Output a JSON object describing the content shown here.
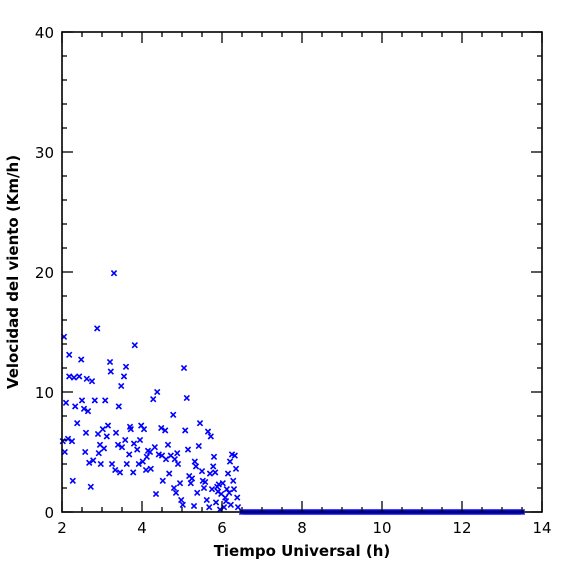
{
  "chart_data": {
    "type": "scatter",
    "title": "",
    "xlabel": "Tiempo Universal (h)",
    "ylabel": "Velocidad del viento (Km/h)",
    "xlim": [
      2,
      14
    ],
    "ylim": [
      0,
      40
    ],
    "x_ticks": [
      "2",
      "4",
      "6",
      "8",
      "10",
      "12",
      "14"
    ],
    "y_ticks": [
      "0",
      "10",
      "20",
      "30",
      "40"
    ],
    "marker": "x",
    "color": "#0000ff",
    "grid": false,
    "series": [
      {
        "points": [
          [
            2.02,
            5.9
          ],
          [
            2.05,
            14.6
          ],
          [
            2.07,
            5.0
          ],
          [
            2.1,
            9.1
          ],
          [
            2.15,
            6.1
          ],
          [
            2.18,
            11.3
          ],
          [
            2.18,
            13.1
          ],
          [
            2.25,
            5.9
          ],
          [
            2.27,
            2.6
          ],
          [
            2.3,
            11.2
          ],
          [
            2.33,
            8.8
          ],
          [
            2.38,
            7.4
          ],
          [
            2.43,
            11.3
          ],
          [
            2.48,
            12.7
          ],
          [
            2.5,
            9.3
          ],
          [
            2.55,
            8.6
          ],
          [
            2.58,
            5.0
          ],
          [
            2.6,
            6.6
          ],
          [
            2.62,
            11.1
          ],
          [
            2.65,
            8.4
          ],
          [
            2.68,
            4.1
          ],
          [
            2.72,
            2.1
          ],
          [
            2.75,
            10.9
          ],
          [
            2.78,
            4.3
          ],
          [
            2.82,
            9.3
          ],
          [
            2.88,
            15.3
          ],
          [
            2.9,
            6.5
          ],
          [
            2.92,
            4.9
          ],
          [
            2.95,
            5.6
          ],
          [
            2.97,
            4.0
          ],
          [
            3.02,
            6.9
          ],
          [
            3.05,
            5.3
          ],
          [
            3.08,
            9.3
          ],
          [
            3.12,
            6.3
          ],
          [
            3.15,
            7.2
          ],
          [
            3.2,
            12.5
          ],
          [
            3.22,
            11.7
          ],
          [
            3.25,
            4.0
          ],
          [
            3.3,
            19.9
          ],
          [
            3.33,
            3.5
          ],
          [
            3.35,
            6.6
          ],
          [
            3.4,
            5.6
          ],
          [
            3.42,
            8.8
          ],
          [
            3.45,
            3.3
          ],
          [
            3.48,
            10.5
          ],
          [
            3.5,
            5.4
          ],
          [
            3.55,
            11.3
          ],
          [
            3.58,
            6.0
          ],
          [
            3.6,
            12.1
          ],
          [
            3.62,
            4.0
          ],
          [
            3.68,
            4.8
          ],
          [
            3.7,
            7.1
          ],
          [
            3.72,
            6.9
          ],
          [
            3.78,
            3.3
          ],
          [
            3.8,
            5.7
          ],
          [
            3.82,
            13.9
          ],
          [
            3.88,
            5.2
          ],
          [
            3.92,
            4.0
          ],
          [
            3.95,
            6.0
          ],
          [
            3.98,
            7.2
          ],
          [
            4.02,
            4.2
          ],
          [
            4.05,
            6.9
          ],
          [
            4.1,
            3.5
          ],
          [
            4.12,
            4.6
          ],
          [
            4.15,
            5.1
          ],
          [
            4.2,
            5.0
          ],
          [
            4.22,
            3.6
          ],
          [
            4.28,
            9.4
          ],
          [
            4.32,
            5.4
          ],
          [
            4.35,
            1.5
          ],
          [
            4.38,
            10.0
          ],
          [
            4.42,
            4.8
          ],
          [
            4.48,
            7.0
          ],
          [
            4.5,
            4.7
          ],
          [
            4.52,
            2.6
          ],
          [
            4.58,
            6.8
          ],
          [
            4.6,
            4.4
          ],
          [
            4.65,
            5.6
          ],
          [
            4.68,
            3.2
          ],
          [
            4.72,
            4.7
          ],
          [
            4.78,
            8.1
          ],
          [
            4.8,
            2.0
          ],
          [
            4.82,
            4.4
          ],
          [
            4.85,
            1.6
          ],
          [
            4.88,
            4.9
          ],
          [
            4.9,
            4.0
          ],
          [
            4.95,
            2.4
          ],
          [
            4.98,
            1.0
          ],
          [
            5.02,
            0.6
          ],
          [
            5.05,
            12.0
          ],
          [
            5.08,
            6.8
          ],
          [
            5.12,
            9.5
          ],
          [
            5.15,
            5.2
          ],
          [
            5.18,
            3.0
          ],
          [
            5.22,
            2.4
          ],
          [
            5.25,
            2.8
          ],
          [
            5.3,
            0.5
          ],
          [
            5.32,
            4.2
          ],
          [
            5.35,
            3.8
          ],
          [
            5.38,
            1.6
          ],
          [
            5.42,
            5.5
          ],
          [
            5.45,
            7.4
          ],
          [
            5.5,
            3.4
          ],
          [
            5.52,
            2.6
          ],
          [
            5.55,
            2.0
          ],
          [
            5.58,
            2.5
          ],
          [
            5.62,
            1.0
          ],
          [
            5.65,
            6.7
          ],
          [
            5.68,
            0.4
          ],
          [
            5.7,
            3.2
          ],
          [
            5.72,
            6.3
          ],
          [
            5.75,
            1.9
          ],
          [
            5.78,
            3.8
          ],
          [
            5.8,
            4.6
          ],
          [
            5.83,
            3.3
          ],
          [
            5.85,
            0.8
          ],
          [
            5.88,
            2.1
          ],
          [
            5.9,
            1.7
          ],
          [
            5.92,
            2.3
          ],
          [
            5.95,
            0.2
          ],
          [
            5.98,
            1.5
          ],
          [
            6.02,
            2.4
          ],
          [
            6.05,
            0.4
          ],
          [
            6.08,
            1.2
          ],
          [
            6.1,
            0.9
          ],
          [
            6.12,
            1.9
          ],
          [
            6.15,
            3.2
          ],
          [
            6.18,
            1.6
          ],
          [
            6.2,
            4.2
          ],
          [
            6.22,
            0.6
          ],
          [
            6.25,
            4.8
          ],
          [
            6.28,
            2.6
          ],
          [
            6.3,
            1.9
          ],
          [
            6.32,
            4.7
          ],
          [
            6.35,
            3.6
          ],
          [
            6.38,
            1.2
          ],
          [
            6.4,
            0.4
          ]
        ],
        "flat_segment": {
          "x_start": 6.5,
          "x_end": 13.5,
          "step": 0.05,
          "y": 0
        }
      }
    ]
  }
}
